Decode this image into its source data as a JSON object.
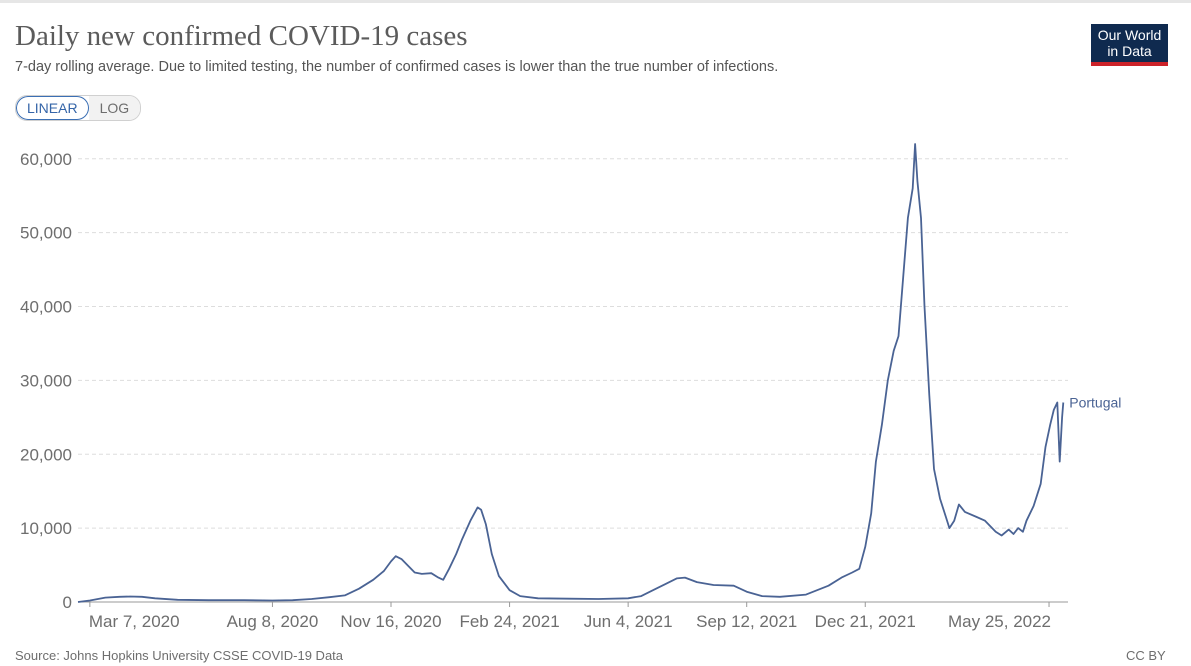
{
  "header": {
    "title": "Daily new confirmed COVID-19 cases",
    "subtitle": "7-day rolling average. Due to limited testing, the number of confirmed cases is lower than the true number of infections."
  },
  "scale_toggle": {
    "linear_label": "LINEAR",
    "log_label": "LOG",
    "selected": "LINEAR"
  },
  "logo": {
    "line1": "Our World",
    "line2": "in Data"
  },
  "footer": {
    "source": "Source: Johns Hopkins University CSSE COVID-19 Data",
    "license": "CC BY"
  },
  "colors": {
    "series": "#4a6394",
    "logo_bg": "#0f2a4f",
    "logo_accent": "#cc2229",
    "grid": "#dddddd"
  },
  "chart_data": {
    "type": "line",
    "title": "Daily new confirmed COVID-19 cases",
    "subtitle": "7-day rolling average. Due to limited testing, the number of confirmed cases is lower than the true number of infections.",
    "xlabel": "",
    "ylabel": "",
    "x_range": [
      "2020-02-26",
      "2022-06-10"
    ],
    "ylim": [
      0,
      62000
    ],
    "y_ticks": [
      0,
      10000,
      20000,
      30000,
      40000,
      50000,
      60000
    ],
    "y_tick_labels": [
      "0",
      "10,000",
      "20,000",
      "30,000",
      "40,000",
      "50,000",
      "60,000"
    ],
    "x_ticks": [
      {
        "date": "2020-03-07",
        "label": "Mar 7, 2020"
      },
      {
        "date": "2020-08-08",
        "label": "Aug 8, 2020"
      },
      {
        "date": "2020-11-16",
        "label": "Nov 16, 2020"
      },
      {
        "date": "2021-02-24",
        "label": "Feb 24, 2021"
      },
      {
        "date": "2021-06-04",
        "label": "Jun 4, 2021"
      },
      {
        "date": "2021-09-12",
        "label": "Sep 12, 2021"
      },
      {
        "date": "2021-12-21",
        "label": "Dec 21, 2021"
      },
      {
        "date": "2022-05-25",
        "label": "May 25, 2022"
      }
    ],
    "grid": "horizontal dashed",
    "series": [
      {
        "name": "Portugal",
        "points": [
          [
            "2020-02-26",
            0
          ],
          [
            "2020-03-07",
            200
          ],
          [
            "2020-03-20",
            600
          ],
          [
            "2020-04-01",
            700
          ],
          [
            "2020-04-10",
            750
          ],
          [
            "2020-04-20",
            700
          ],
          [
            "2020-05-01",
            500
          ],
          [
            "2020-05-20",
            300
          ],
          [
            "2020-06-15",
            250
          ],
          [
            "2020-07-15",
            250
          ],
          [
            "2020-08-08",
            200
          ],
          [
            "2020-08-25",
            250
          ],
          [
            "2020-09-10",
            400
          ],
          [
            "2020-09-25",
            650
          ],
          [
            "2020-10-08",
            900
          ],
          [
            "2020-10-20",
            1800
          ],
          [
            "2020-11-01",
            3000
          ],
          [
            "2020-11-10",
            4200
          ],
          [
            "2020-11-16",
            5500
          ],
          [
            "2020-11-20",
            6200
          ],
          [
            "2020-11-25",
            5800
          ],
          [
            "2020-12-01",
            4800
          ],
          [
            "2020-12-06",
            4000
          ],
          [
            "2020-12-12",
            3800
          ],
          [
            "2020-12-20",
            3900
          ],
          [
            "2020-12-26",
            3300
          ],
          [
            "2020-12-30",
            3000
          ],
          [
            "2021-01-04",
            4500
          ],
          [
            "2021-01-10",
            6500
          ],
          [
            "2021-01-15",
            8500
          ],
          [
            "2021-01-22",
            11000
          ],
          [
            "2021-01-28",
            12800
          ],
          [
            "2021-01-31",
            12500
          ],
          [
            "2021-02-04",
            10500
          ],
          [
            "2021-02-09",
            6500
          ],
          [
            "2021-02-15",
            3500
          ],
          [
            "2021-02-24",
            1600
          ],
          [
            "2021-03-05",
            800
          ],
          [
            "2021-03-20",
            500
          ],
          [
            "2021-04-15",
            450
          ],
          [
            "2021-05-10",
            400
          ],
          [
            "2021-06-04",
            500
          ],
          [
            "2021-06-15",
            800
          ],
          [
            "2021-06-25",
            1600
          ],
          [
            "2021-07-05",
            2400
          ],
          [
            "2021-07-15",
            3200
          ],
          [
            "2021-07-22",
            3300
          ],
          [
            "2021-08-01",
            2700
          ],
          [
            "2021-08-15",
            2300
          ],
          [
            "2021-09-01",
            2200
          ],
          [
            "2021-09-12",
            1400
          ],
          [
            "2021-09-25",
            800
          ],
          [
            "2021-10-10",
            700
          ],
          [
            "2021-11-01",
            1000
          ],
          [
            "2021-11-20",
            2200
          ],
          [
            "2021-12-01",
            3300
          ],
          [
            "2021-12-10",
            4000
          ],
          [
            "2021-12-16",
            4500
          ],
          [
            "2021-12-21",
            7500
          ],
          [
            "2021-12-26",
            12000
          ],
          [
            "2021-12-30",
            19000
          ],
          [
            "2022-01-04",
            24000
          ],
          [
            "2022-01-09",
            30000
          ],
          [
            "2022-01-14",
            34000
          ],
          [
            "2022-01-18",
            36000
          ],
          [
            "2022-01-22",
            44000
          ],
          [
            "2022-01-26",
            52000
          ],
          [
            "2022-01-30",
            56000
          ],
          [
            "2022-02-01",
            62000
          ],
          [
            "2022-02-03",
            57000
          ],
          [
            "2022-02-06",
            52000
          ],
          [
            "2022-02-09",
            40000
          ],
          [
            "2022-02-13",
            28000
          ],
          [
            "2022-02-17",
            18000
          ],
          [
            "2022-02-22",
            14000
          ],
          [
            "2022-02-27",
            11500
          ],
          [
            "2022-03-02",
            10000
          ],
          [
            "2022-03-06",
            11000
          ],
          [
            "2022-03-10",
            13200
          ],
          [
            "2022-03-15",
            12200
          ],
          [
            "2022-03-25",
            11500
          ],
          [
            "2022-04-01",
            11000
          ],
          [
            "2022-04-10",
            9500
          ],
          [
            "2022-04-15",
            9000
          ],
          [
            "2022-04-21",
            9800
          ],
          [
            "2022-04-25",
            9200
          ],
          [
            "2022-04-29",
            10000
          ],
          [
            "2022-05-03",
            9500
          ],
          [
            "2022-05-06",
            11000
          ],
          [
            "2022-05-12",
            13000
          ],
          [
            "2022-05-18",
            16000
          ],
          [
            "2022-05-22",
            21000
          ],
          [
            "2022-05-26",
            24000
          ],
          [
            "2022-05-29",
            26000
          ],
          [
            "2022-06-01",
            27000
          ],
          [
            "2022-06-03",
            19000
          ],
          [
            "2022-06-05",
            25000
          ],
          [
            "2022-06-06",
            27000
          ]
        ]
      }
    ]
  }
}
